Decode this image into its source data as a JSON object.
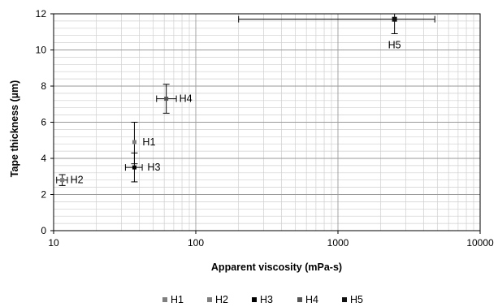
{
  "chart_data": {
    "type": "scatter",
    "title": "",
    "xlabel": "Apparent viscosity (mPa-s)",
    "ylabel": "Tape thickness  (µm)",
    "x_scale": "log",
    "xlim": [
      10,
      10000
    ],
    "ylim": [
      0,
      12
    ],
    "x_ticks": [
      "10",
      "100",
      "1000",
      "10000"
    ],
    "y_ticks": [
      "0",
      "2",
      "4",
      "6",
      "8",
      "10",
      "12"
    ],
    "grid": true,
    "legend_position": "bottom",
    "series": [
      {
        "name": "H1",
        "color": "#7f7f7f",
        "x": 37,
        "y": 4.9,
        "x_err": [
          37,
          37
        ],
        "y_err": [
          3.7,
          6.0
        ]
      },
      {
        "name": "H2",
        "color": "#7f7f7f",
        "x": 11.5,
        "y": 2.8,
        "x_err": [
          10.5,
          12.5
        ],
        "y_err": [
          2.5,
          3.1
        ]
      },
      {
        "name": "H3",
        "color": "#000000",
        "x": 37,
        "y": 3.5,
        "x_err": [
          32,
          42
        ],
        "y_err": [
          2.7,
          4.3
        ]
      },
      {
        "name": "H4",
        "color": "#555555",
        "x": 62,
        "y": 7.3,
        "x_err": [
          53,
          73
        ],
        "y_err": [
          6.5,
          8.1
        ]
      },
      {
        "name": "H5",
        "color": "#111111",
        "x": 2500,
        "y": 11.7,
        "x_err": [
          200,
          4800
        ],
        "y_err": [
          10.9,
          12.0
        ]
      }
    ]
  }
}
